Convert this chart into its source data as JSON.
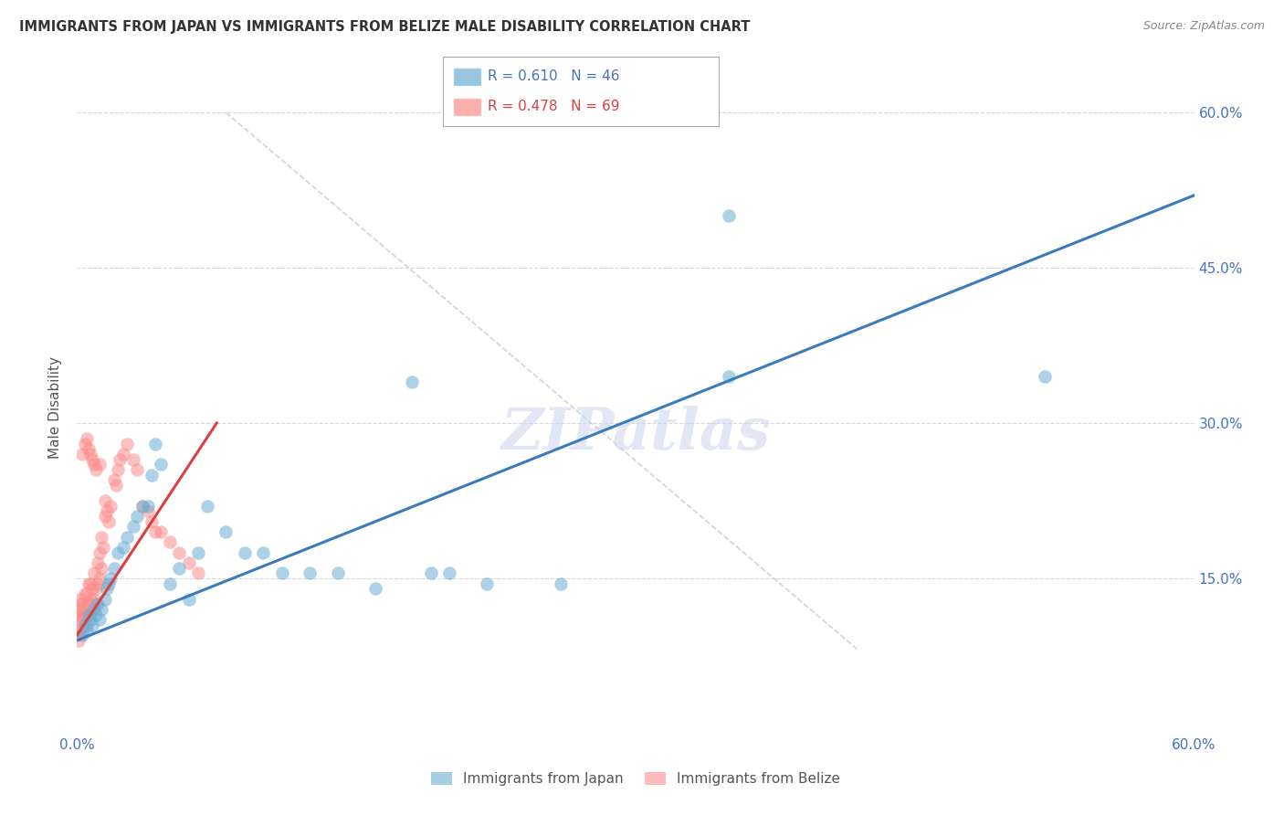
{
  "title": "IMMIGRANTS FROM JAPAN VS IMMIGRANTS FROM BELIZE MALE DISABILITY CORRELATION CHART",
  "source": "Source: ZipAtlas.com",
  "ylabel": "Male Disability",
  "xlim": [
    0.0,
    0.6
  ],
  "ylim": [
    0.0,
    0.63
  ],
  "japan_scatter_x": [
    0.003,
    0.004,
    0.005,
    0.006,
    0.007,
    0.008,
    0.009,
    0.01,
    0.011,
    0.012,
    0.013,
    0.015,
    0.016,
    0.017,
    0.018,
    0.02,
    0.022,
    0.025,
    0.027,
    0.03,
    0.032,
    0.035,
    0.038,
    0.04,
    0.042,
    0.045,
    0.05,
    0.055,
    0.06,
    0.065,
    0.07,
    0.08,
    0.09,
    0.1,
    0.11,
    0.125,
    0.14,
    0.16,
    0.18,
    0.19,
    0.2,
    0.22,
    0.26,
    0.35,
    0.35,
    0.52
  ],
  "japan_scatter_y": [
    0.095,
    0.105,
    0.1,
    0.115,
    0.11,
    0.105,
    0.12,
    0.115,
    0.125,
    0.11,
    0.12,
    0.13,
    0.14,
    0.145,
    0.15,
    0.16,
    0.175,
    0.18,
    0.19,
    0.2,
    0.21,
    0.22,
    0.22,
    0.25,
    0.28,
    0.26,
    0.145,
    0.16,
    0.13,
    0.175,
    0.22,
    0.195,
    0.175,
    0.175,
    0.155,
    0.155,
    0.155,
    0.14,
    0.34,
    0.155,
    0.155,
    0.145,
    0.145,
    0.5,
    0.345,
    0.345
  ],
  "belize_scatter_x": [
    0.001,
    0.001,
    0.001,
    0.001,
    0.001,
    0.002,
    0.002,
    0.002,
    0.002,
    0.002,
    0.003,
    0.003,
    0.003,
    0.004,
    0.004,
    0.004,
    0.005,
    0.005,
    0.005,
    0.006,
    0.006,
    0.006,
    0.007,
    0.007,
    0.007,
    0.008,
    0.008,
    0.009,
    0.009,
    0.01,
    0.01,
    0.011,
    0.011,
    0.012,
    0.012,
    0.013,
    0.013,
    0.014,
    0.015,
    0.015,
    0.016,
    0.017,
    0.018,
    0.02,
    0.021,
    0.022,
    0.023,
    0.025,
    0.027,
    0.03,
    0.032,
    0.035,
    0.038,
    0.04,
    0.042,
    0.045,
    0.05,
    0.055,
    0.06,
    0.065,
    0.003,
    0.004,
    0.005,
    0.006,
    0.007,
    0.008,
    0.009,
    0.01,
    0.012
  ],
  "belize_scatter_y": [
    0.09,
    0.1,
    0.11,
    0.115,
    0.12,
    0.095,
    0.105,
    0.115,
    0.125,
    0.13,
    0.1,
    0.115,
    0.125,
    0.11,
    0.12,
    0.135,
    0.105,
    0.115,
    0.135,
    0.115,
    0.125,
    0.145,
    0.115,
    0.13,
    0.145,
    0.12,
    0.14,
    0.13,
    0.155,
    0.125,
    0.14,
    0.145,
    0.165,
    0.15,
    0.175,
    0.16,
    0.19,
    0.18,
    0.21,
    0.225,
    0.215,
    0.205,
    0.22,
    0.245,
    0.24,
    0.255,
    0.265,
    0.27,
    0.28,
    0.265,
    0.255,
    0.22,
    0.215,
    0.205,
    0.195,
    0.195,
    0.185,
    0.175,
    0.165,
    0.155,
    0.27,
    0.28,
    0.285,
    0.275,
    0.27,
    0.265,
    0.26,
    0.255,
    0.26
  ],
  "japan_line_x": [
    0.0,
    0.6
  ],
  "japan_line_y": [
    0.09,
    0.52
  ],
  "belize_line_x": [
    0.0,
    0.075
  ],
  "belize_line_y": [
    0.095,
    0.3
  ],
  "diag_line_x": [
    0.08,
    0.42
  ],
  "diag_line_y": [
    0.6,
    0.08
  ],
  "japan_color": "#6baed6",
  "belize_color": "#fc8d8d",
  "japan_line_color": "#3a7abf",
  "belize_line_color": "#d94040",
  "diag_color": "#c8c8c8",
  "watermark": "ZIPatlas",
  "background_color": "#ffffff",
  "grid_color": "#d8d8d8",
  "tick_color": "#4472c4",
  "label_color": "#555555"
}
